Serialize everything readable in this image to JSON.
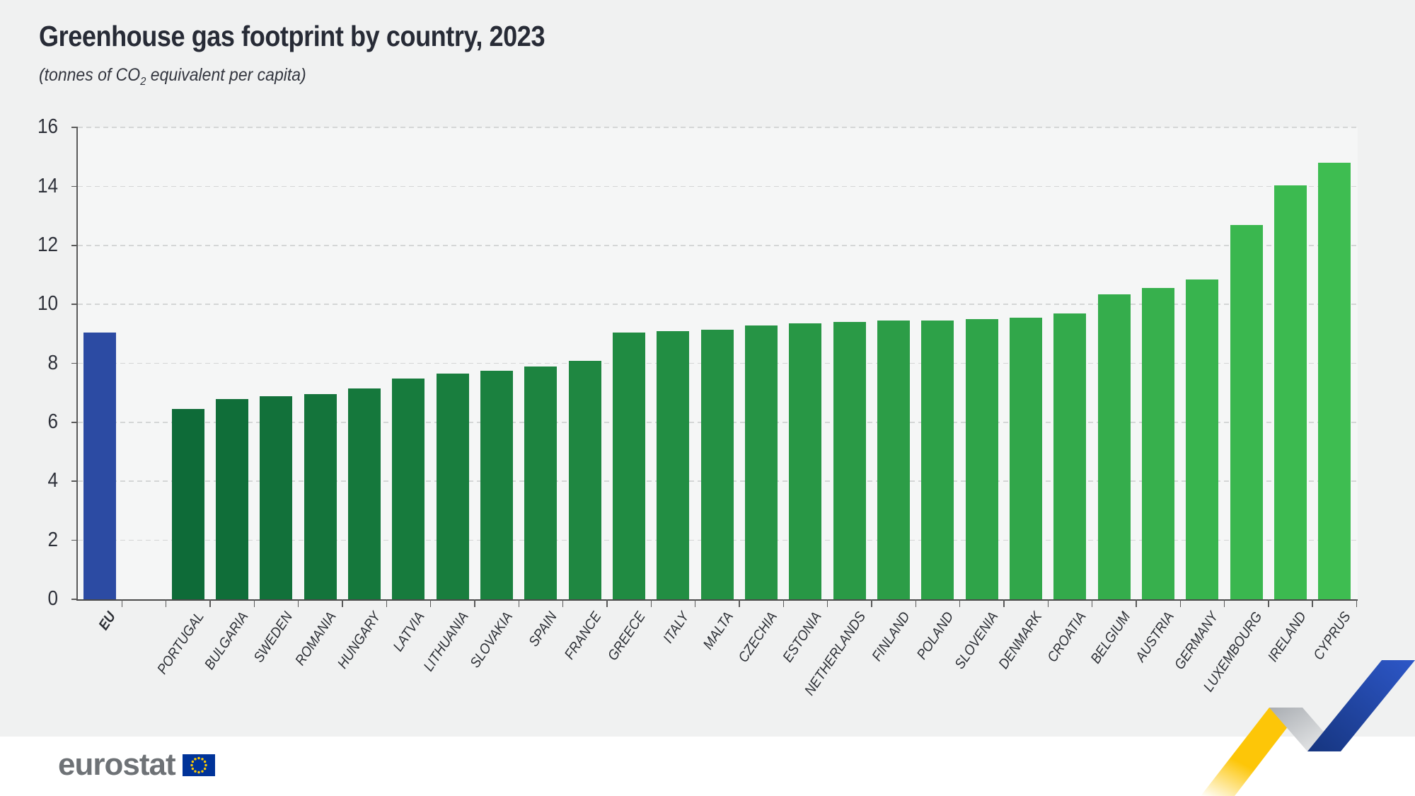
{
  "title": "Greenhouse gas footprint by country, 2023",
  "subtitle": {
    "prefix": "(tonnes of CO",
    "sub": "2",
    "suffix": " equivalent per capita)"
  },
  "footer": {
    "brand": "eurostat"
  },
  "colors": {
    "outer_bg": "#f0f1f1",
    "plot_bg": "#f5f6f6",
    "eu_bar": "#2c4ba3",
    "gradient_start": "#0e6b38",
    "gradient_end": "#3ebd51",
    "axis": "#5a5a5a",
    "gridline": "#d4d6d6",
    "text": "#272b36",
    "flag_blue": "#003399",
    "flag_stars": "#ffcc00",
    "ribbon_yellow": "#fdc608",
    "ribbon_blue_dark": "#16357f",
    "ribbon_blue_light": "#2d57c8",
    "ribbon_silver_dark": "#a9adb2",
    "ribbon_silver_light": "#f0f1f1"
  },
  "chart_data": {
    "type": "bar",
    "title": "Greenhouse gas footprint by country, 2023",
    "ylabel": "tonnes of CO2 equivalent per capita",
    "ylim": [
      0,
      16
    ],
    "ytick_step": 2,
    "grid": "horizontal-dashed",
    "categories": [
      "EU",
      "PORTUGAL",
      "BULGARIA",
      "SWEDEN",
      "ROMANIA",
      "HUNGARY",
      "LATVIA",
      "LITHUANIA",
      "SLOVAKIA",
      "SPAIN",
      "FRANCE",
      "GREECE",
      "ITALY",
      "MALTA",
      "CZECHIA",
      "ESTONIA",
      "NETHERLANDS",
      "FINLAND",
      "POLAND",
      "SLOVENIA",
      "DENMARK",
      "CROATIA",
      "BELGIUM",
      "AUSTRIA",
      "GERMANY",
      "LUXEMBOURG",
      "IRELAND",
      "CYPRUS"
    ],
    "values": [
      9.05,
      6.45,
      6.8,
      6.9,
      6.95,
      7.15,
      7.5,
      7.65,
      7.75,
      7.9,
      8.1,
      9.05,
      9.1,
      9.15,
      9.3,
      9.35,
      9.4,
      9.45,
      9.45,
      9.5,
      9.55,
      9.7,
      10.35,
      10.55,
      10.85,
      12.7,
      14.05,
      14.8
    ]
  }
}
